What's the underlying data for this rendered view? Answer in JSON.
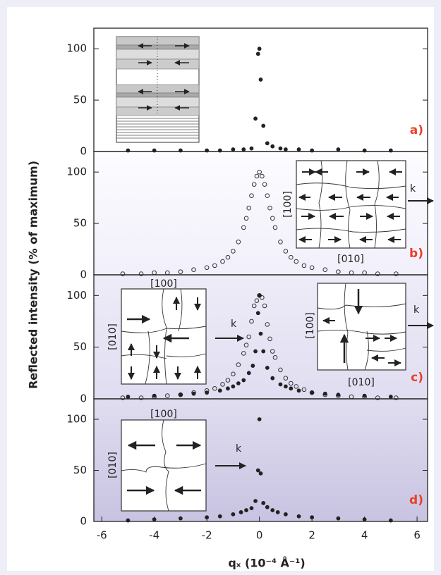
{
  "chart_data": [
    {
      "type": "scatter",
      "label": "a)",
      "ylabel": "Reflected intensity (% of maximum)",
      "xlim": [
        -6.3,
        6.4
      ],
      "ylim": [
        0,
        120
      ],
      "yticks": [
        0,
        50,
        100
      ],
      "annotations": [],
      "series": [
        {
          "marker": "filled",
          "color": "#222222",
          "x": [
            -5,
            -4,
            -3,
            -2,
            -1.5,
            -1,
            -0.6,
            -0.3,
            -0.15,
            -0.05,
            0,
            0.05,
            0.15,
            0.3,
            0.5,
            0.8,
            1,
            1.5,
            2,
            3,
            4,
            5
          ],
          "values": [
            1,
            1,
            1,
            1,
            1,
            2,
            2,
            3,
            32,
            95,
            100,
            70,
            25,
            8,
            5,
            3,
            2,
            2,
            1,
            2,
            1,
            1
          ]
        }
      ]
    },
    {
      "type": "scatter",
      "label": "b)",
      "xlim": [
        -6.3,
        6.4
      ],
      "ylim": [
        0,
        120
      ],
      "yticks": [
        0,
        50,
        100
      ],
      "annotations": [
        "[100]",
        "[010]",
        "k"
      ],
      "series": [
        {
          "marker": "open",
          "color": "#333333",
          "x": [
            -5.2,
            -4.5,
            -4,
            -3.5,
            -3,
            -2.5,
            -2,
            -1.7,
            -1.4,
            -1.2,
            -1,
            -0.8,
            -0.6,
            -0.5,
            -0.4,
            -0.3,
            -0.2,
            -0.1,
            0,
            0.1,
            0.2,
            0.3,
            0.4,
            0.5,
            0.6,
            0.8,
            1,
            1.2,
            1.4,
            1.7,
            2,
            2.5,
            3,
            3.5,
            4,
            4.5,
            5.2
          ],
          "values": [
            1,
            1,
            2,
            2,
            3,
            5,
            7,
            9,
            13,
            17,
            23,
            32,
            46,
            55,
            65,
            77,
            88,
            96,
            100,
            96,
            88,
            77,
            65,
            55,
            46,
            32,
            23,
            17,
            13,
            9,
            7,
            5,
            3,
            2,
            2,
            1,
            1
          ]
        }
      ]
    },
    {
      "type": "scatter",
      "label": "c)",
      "xlim": [
        -6.3,
        6.4
      ],
      "ylim": [
        0,
        120
      ],
      "yticks": [
        0,
        50,
        100
      ],
      "annotations": [
        "[100]",
        "[010]",
        "k",
        "[100]",
        "[010]",
        "k"
      ],
      "series": [
        {
          "marker": "open",
          "color": "#333333",
          "x": [
            -5.2,
            -4.5,
            -4,
            -3.5,
            -3,
            -2.5,
            -2,
            -1.7,
            -1.4,
            -1.2,
            -1,
            -0.8,
            -0.6,
            -0.5,
            -0.4,
            -0.3,
            -0.2,
            -0.1,
            0,
            0.1,
            0.2,
            0.3,
            0.4,
            0.5,
            0.6,
            0.8,
            1,
            1.2,
            1.4,
            1.7,
            2,
            2.5,
            3,
            3.5,
            4,
            4.5,
            5.2
          ],
          "values": [
            1,
            1,
            2,
            3,
            4,
            6,
            8,
            10,
            14,
            18,
            24,
            33,
            44,
            52,
            60,
            75,
            90,
            95,
            100,
            98,
            90,
            72,
            58,
            46,
            40,
            28,
            20,
            15,
            12,
            9,
            6,
            4,
            3,
            2,
            2,
            1,
            1
          ]
        },
        {
          "marker": "filled",
          "color": "#222222",
          "x": [
            -5,
            -4,
            -3,
            -2.5,
            -2,
            -1.5,
            -1.2,
            -1,
            -0.8,
            -0.6,
            -0.4,
            -0.25,
            -0.15,
            -0.05,
            0,
            0.05,
            0.15,
            0.3,
            0.5,
            0.8,
            1,
            1.2,
            1.5,
            2,
            2.5,
            3,
            4,
            5
          ],
          "values": [
            2,
            3,
            4,
            5,
            6,
            8,
            10,
            12,
            15,
            18,
            25,
            32,
            46,
            83,
            100,
            63,
            46,
            30,
            20,
            14,
            12,
            10,
            8,
            6,
            5,
            4,
            3,
            2
          ]
        }
      ]
    },
    {
      "type": "scatter",
      "label": "d)",
      "xlabel": "qₓ (10⁻⁴ Å⁻¹)",
      "xlim": [
        -6.3,
        6.4
      ],
      "ylim": [
        0,
        120
      ],
      "yticks": [
        0,
        50,
        100
      ],
      "xticks": [
        -6,
        -4,
        -2,
        0,
        2,
        4,
        6
      ],
      "annotations": [
        "[100]",
        "[010]",
        "k"
      ],
      "series": [
        {
          "marker": "filled",
          "color": "#222222",
          "x": [
            -5,
            -4,
            -3,
            -2,
            -1.5,
            -1,
            -0.7,
            -0.5,
            -0.3,
            -0.15,
            -0.05,
            0,
            0.05,
            0.15,
            0.3,
            0.5,
            0.7,
            1,
            1.5,
            2,
            3,
            4,
            5
          ],
          "values": [
            1,
            2,
            3,
            4,
            5,
            7,
            9,
            11,
            13,
            20,
            50,
            100,
            47,
            18,
            14,
            11,
            9,
            7,
            5,
            4,
            3,
            2,
            1
          ]
        }
      ]
    }
  ]
}
